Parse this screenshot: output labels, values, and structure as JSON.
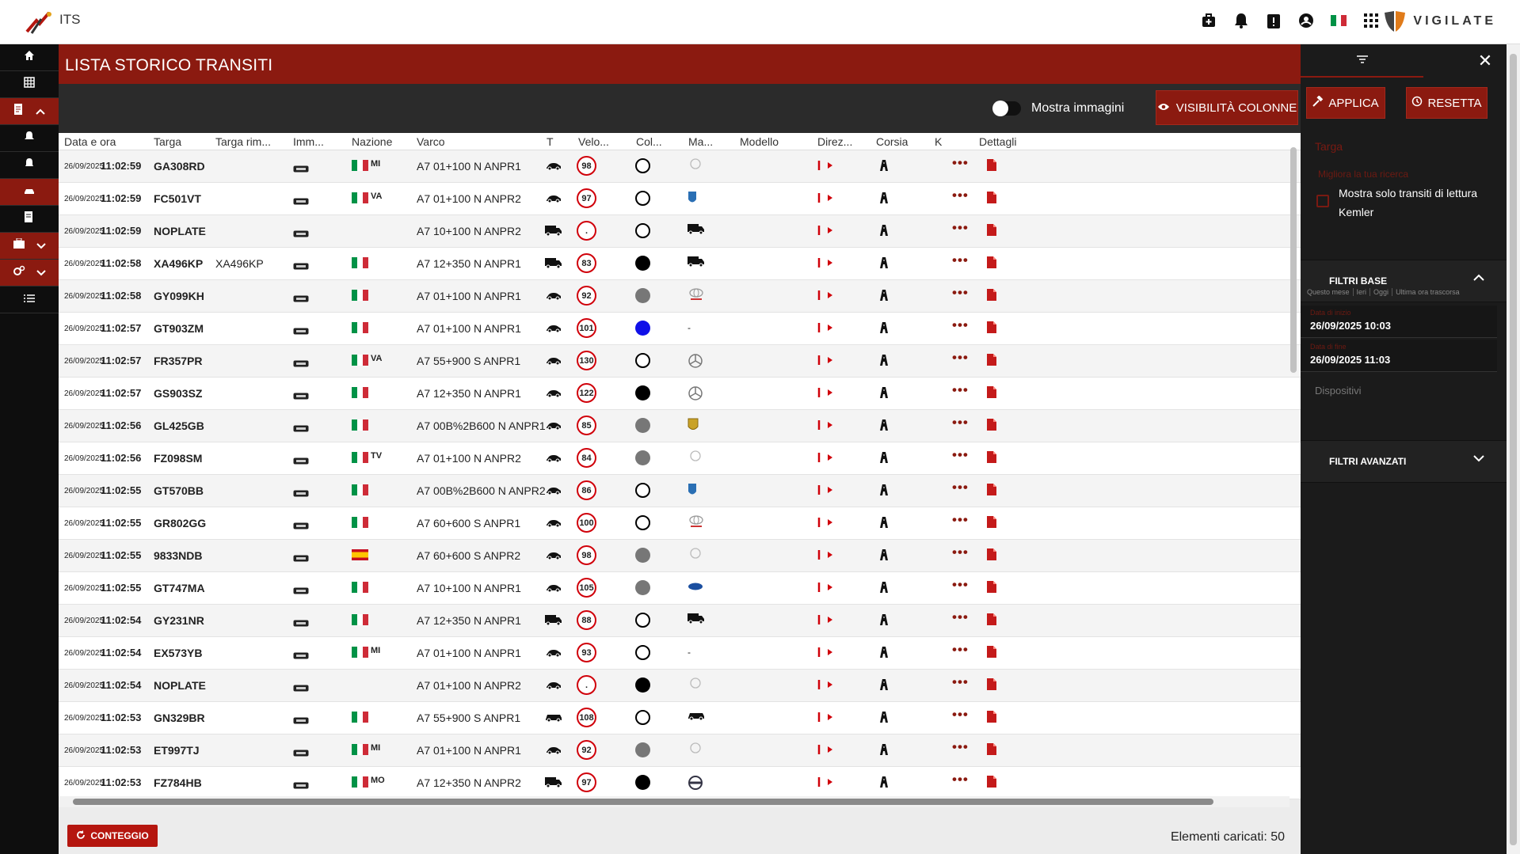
{
  "app": {
    "title": "ITS",
    "brand": "VIGILATE"
  },
  "page": {
    "title": "LISTA STORICO TRANSITI",
    "toggle_label": "Mostra immagini",
    "col_visibility_label": "VISIBILITÀ COLONNE",
    "count_button": "CONTEGGIO",
    "loaded_label": "Elementi caricati: 50"
  },
  "columns": [
    "Data e ora",
    "Targa",
    "Targa rim...",
    "Imm...",
    "Nazione",
    "Varco",
    "T",
    "Velo...",
    "Col...",
    "Ma...",
    "Modello",
    "Direz...",
    "Corsia",
    "Ke",
    "Dettagli"
  ],
  "rows": [
    {
      "date": "26/09/2025",
      "time": "11:02:59",
      "plate": "GA308RD",
      "alt": "",
      "flag": "IT",
      "prov": "MI",
      "gate": "A7  01+100  N  ANPR1",
      "vehicle": "car",
      "speed": "98",
      "color": "white",
      "brand": "Citroen"
    },
    {
      "date": "26/09/2025",
      "time": "11:02:59",
      "plate": "FC501VT",
      "alt": "",
      "flag": "IT",
      "prov": "VA",
      "gate": "A7  01+100  N  ANPR2",
      "vehicle": "car",
      "speed": "97",
      "color": "white",
      "brand": "Dacia"
    },
    {
      "date": "26/09/2025",
      "time": "11:02:59",
      "plate": "NOPLATE",
      "alt": "",
      "flag": "",
      "prov": "",
      "gate": "A7  10+100  N  ANPR2",
      "vehicle": "truck",
      "speed": ".",
      "color": "white",
      "brand": "Truck"
    },
    {
      "date": "26/09/2025",
      "time": "11:02:58",
      "plate": "XA496KP",
      "alt": "XA496KP",
      "flag": "IT",
      "prov": "",
      "gate": "A7  12+350  N  ANPR1",
      "vehicle": "truck",
      "speed": "83",
      "color": "black",
      "brand": "Truck"
    },
    {
      "date": "26/09/2025",
      "time": "11:02:58",
      "plate": "GY099KH",
      "alt": "",
      "flag": "IT",
      "prov": "",
      "gate": "A7  01+100  N  ANPR1",
      "vehicle": "car",
      "speed": "92",
      "color": "grey",
      "brand": "Toyota"
    },
    {
      "date": "26/09/2025",
      "time": "11:02:57",
      "plate": "GT903ZM",
      "alt": "",
      "flag": "IT",
      "prov": "",
      "gate": "A7  01+100  N  ANPR1",
      "vehicle": "car",
      "speed": "101",
      "color": "blue",
      "brand": "-"
    },
    {
      "date": "26/09/2025",
      "time": "11:02:57",
      "plate": "FR357PR",
      "alt": "",
      "flag": "IT",
      "prov": "VA",
      "gate": "A7  55+900  S  ANPR1",
      "vehicle": "car",
      "speed": "130",
      "color": "white",
      "brand": "Mercedes"
    },
    {
      "date": "26/09/2025",
      "time": "11:02:57",
      "plate": "GS903SZ",
      "alt": "",
      "flag": "IT",
      "prov": "",
      "gate": "A7  12+350  N  ANPR1",
      "vehicle": "car",
      "speed": "122",
      "color": "black",
      "brand": "Mercedes"
    },
    {
      "date": "26/09/2025",
      "time": "11:02:56",
      "plate": "GL425GB",
      "alt": "",
      "flag": "IT",
      "prov": "",
      "gate": "A7  00B%2B600  N  ANPR1",
      "vehicle": "car",
      "speed": "85",
      "color": "grey",
      "brand": "Porsche"
    },
    {
      "date": "26/09/2025",
      "time": "11:02:56",
      "plate": "FZ098SM",
      "alt": "",
      "flag": "IT",
      "prov": "TV",
      "gate": "A7  01+100  N  ANPR2",
      "vehicle": "car",
      "speed": "84",
      "color": "grey",
      "brand": "Suzuki"
    },
    {
      "date": "26/09/2025",
      "time": "11:02:55",
      "plate": "GT570BB",
      "alt": "",
      "flag": "IT",
      "prov": "",
      "gate": "A7  00B%2B600  N  ANPR2",
      "vehicle": "car",
      "speed": "86",
      "color": "white",
      "brand": "Dacia"
    },
    {
      "date": "26/09/2025",
      "time": "11:02:55",
      "plate": "GR802GG",
      "alt": "",
      "flag": "IT",
      "prov": "",
      "gate": "A7  60+600  S  ANPR1",
      "vehicle": "car",
      "speed": "100",
      "color": "white",
      "brand": "Toyota"
    },
    {
      "date": "26/09/2025",
      "time": "11:02:55",
      "plate": "9833NDB",
      "alt": "",
      "flag": "ES",
      "prov": "",
      "gate": "A7  60+600  S  ANPR2",
      "vehicle": "car",
      "speed": "98",
      "color": "grey",
      "brand": "Jaguar"
    },
    {
      "date": "26/09/2025",
      "time": "11:02:55",
      "plate": "GT747MA",
      "alt": "",
      "flag": "IT",
      "prov": "",
      "gate": "A7  10+100  N  ANPR1",
      "vehicle": "car",
      "speed": "105",
      "color": "grey",
      "brand": "Ford"
    },
    {
      "date": "26/09/2025",
      "time": "11:02:54",
      "plate": "GY231NR",
      "alt": "",
      "flag": "IT",
      "prov": "",
      "gate": "A7  12+350  N  ANPR1",
      "vehicle": "truck",
      "speed": "88",
      "color": "white",
      "brand": "Truck"
    },
    {
      "date": "26/09/2025",
      "time": "11:02:54",
      "plate": "EX573YB",
      "alt": "",
      "flag": "IT",
      "prov": "MI",
      "gate": "A7  01+100  N  ANPR1",
      "vehicle": "car",
      "speed": "93",
      "color": "white",
      "brand": "-"
    },
    {
      "date": "26/09/2025",
      "time": "11:02:54",
      "plate": "NOPLATE",
      "alt": "",
      "flag": "",
      "prov": "",
      "gate": "A7  01+100  N  ANPR2",
      "vehicle": "car",
      "speed": ".",
      "color": "black",
      "brand": "Opel"
    },
    {
      "date": "26/09/2025",
      "time": "11:02:53",
      "plate": "GN329BR",
      "alt": "",
      "flag": "IT",
      "prov": "",
      "gate": "A7  55+900  S  ANPR1",
      "vehicle": "van",
      "speed": "108",
      "color": "white",
      "brand": "Camper"
    },
    {
      "date": "26/09/2025",
      "time": "11:02:53",
      "plate": "ET997TJ",
      "alt": "",
      "flag": "IT",
      "prov": "MI",
      "gate": "A7  01+100  N  ANPR1",
      "vehicle": "car",
      "speed": "92",
      "color": "grey",
      "brand": "Opel"
    },
    {
      "date": "26/09/2025",
      "time": "11:02:53",
      "plate": "FZ784HB",
      "alt": "",
      "flag": "IT",
      "prov": "MO",
      "gate": "A7  12+350  N  ANPR2",
      "vehicle": "truck",
      "speed": "97",
      "color": "black",
      "brand": "Volvo"
    }
  ],
  "panel": {
    "apply": "APPLICA",
    "reset": "RESETTA",
    "targa_placeholder": "Targa",
    "hint": "Migliora la tua ricerca",
    "kemler_label": "Mostra solo transiti di lettura Kemler",
    "base_filters": "FILTRI BASE",
    "quick": [
      "Questo mese",
      "Ieri",
      "Oggi",
      "Ultima ora trascorsa"
    ],
    "start_label": "Data di inizio",
    "start_value": "26/09/2025 10:03",
    "end_label": "Data di fine",
    "end_value": "26/09/2025 11:03",
    "devices": "Dispositivi",
    "advanced_filters": "FILTRI AVANZATI"
  },
  "colors": {
    "accent": "#8b1a10",
    "speed_ring": "#d0000a"
  }
}
